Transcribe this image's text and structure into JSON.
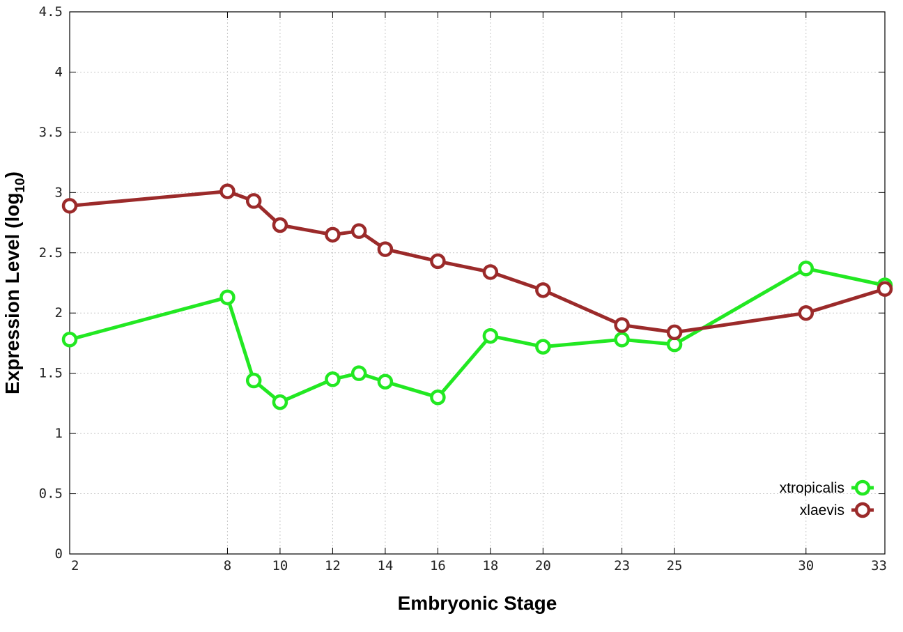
{
  "chart_data": {
    "type": "line",
    "title": "",
    "xlabel": "Embryonic Stage",
    "ylabel": {
      "main": "Expression Level (log",
      "sub": "10",
      "close": ")"
    },
    "xlim": [
      2,
      33
    ],
    "ylim": [
      0,
      4.5
    ],
    "x_ticks": [
      2,
      8,
      10,
      12,
      14,
      16,
      18,
      20,
      23,
      25,
      30,
      33
    ],
    "y_ticks": [
      0,
      0.5,
      1,
      1.5,
      2,
      2.5,
      3,
      3.5,
      4,
      4.5
    ],
    "y_tick_labels": [
      "0",
      "0.5",
      "1",
      "1.5",
      "2",
      "2.5",
      "3",
      "3.5",
      "4",
      "4.5"
    ],
    "grid": true,
    "legend_position": "bottom-right",
    "series": [
      {
        "name": "xtropicalis",
        "color": "#22e822",
        "x": [
          2,
          8,
          9,
          10,
          12,
          13,
          14,
          16,
          18,
          20,
          23,
          25,
          30,
          33
        ],
        "y": [
          1.78,
          2.13,
          1.44,
          1.26,
          1.45,
          1.5,
          1.43,
          1.3,
          1.81,
          1.72,
          1.78,
          1.74,
          2.37,
          2.23
        ]
      },
      {
        "name": "xlaevis",
        "color": "#9b2a2a",
        "x": [
          2,
          8,
          9,
          10,
          12,
          13,
          14,
          16,
          18,
          20,
          23,
          25,
          30,
          33
        ],
        "y": [
          2.89,
          3.01,
          2.93,
          2.73,
          2.65,
          2.68,
          2.53,
          2.43,
          2.34,
          2.19,
          1.9,
          1.84,
          2.0,
          2.2
        ]
      }
    ]
  }
}
